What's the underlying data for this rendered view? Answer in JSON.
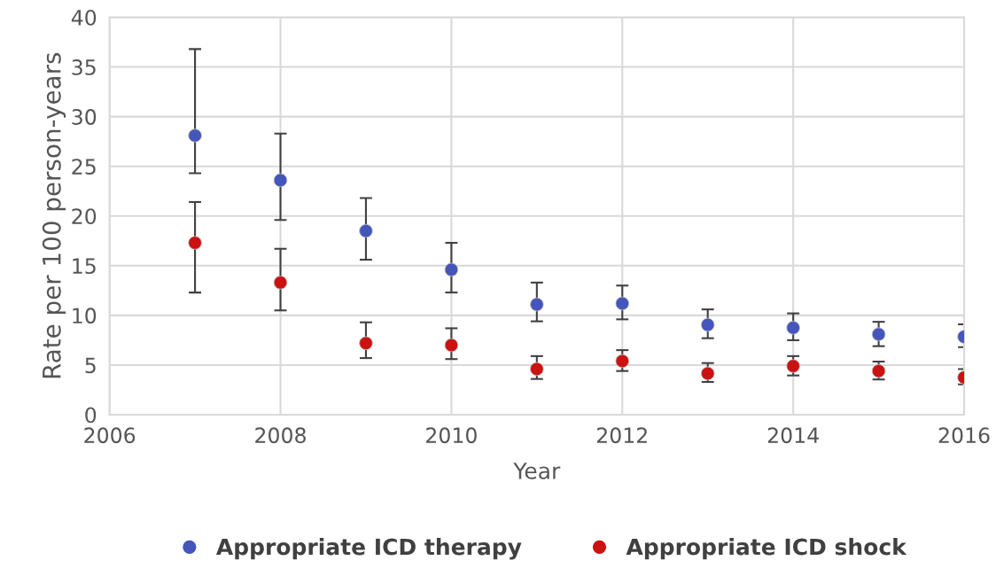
{
  "chart_data": {
    "type": "scatter",
    "xlabel": "Year",
    "ylabel": "Rate per 100 person-years",
    "x": [
      2007,
      2008,
      2009,
      2010,
      2011,
      2012,
      2013,
      2014,
      2015,
      2016
    ],
    "series": [
      {
        "name": "Appropriate ICD therapy",
        "color": "#4455bb",
        "values": [
          28.1,
          23.6,
          18.5,
          14.6,
          11.1,
          11.2,
          9.05,
          8.75,
          8.1,
          7.85
        ],
        "errors": [
          [
            24.3,
            36.8
          ],
          [
            19.6,
            28.3
          ],
          [
            15.6,
            21.8
          ],
          [
            12.3,
            17.3
          ],
          [
            9.4,
            13.3
          ],
          [
            9.6,
            13.0
          ],
          [
            7.7,
            10.6
          ],
          [
            7.5,
            10.2
          ],
          [
            6.9,
            9.35
          ],
          [
            6.8,
            9.1
          ]
        ]
      },
      {
        "name": "Appropriate ICD shock",
        "color": "#cc1111",
        "values": [
          17.3,
          13.3,
          7.2,
          7.0,
          4.6,
          5.4,
          4.15,
          4.9,
          4.4,
          3.75
        ],
        "errors": [
          [
            12.3,
            21.4
          ],
          [
            10.5,
            16.7
          ],
          [
            5.7,
            9.3
          ],
          [
            5.6,
            8.7
          ],
          [
            3.6,
            5.9
          ],
          [
            4.4,
            6.5
          ],
          [
            3.3,
            5.2
          ],
          [
            3.95,
            5.9
          ],
          [
            3.55,
            5.35
          ],
          [
            3.05,
            4.6
          ]
        ]
      }
    ],
    "xlim": [
      2006,
      2016
    ],
    "xticks": [
      2006,
      2008,
      2010,
      2012,
      2014,
      2016
    ],
    "ylim": [
      0,
      40
    ],
    "yticks": [
      0,
      5,
      10,
      15,
      20,
      25,
      30,
      35,
      40
    ],
    "grid": true,
    "legend": "bottom",
    "marker": "circle"
  }
}
